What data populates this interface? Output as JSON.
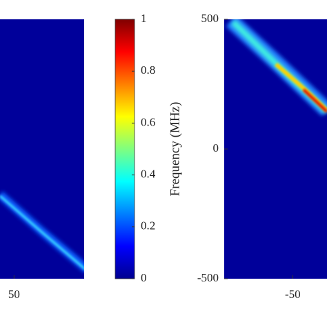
{
  "chart_data": [
    {
      "type": "heatmap",
      "xlim": [
        40,
        100
      ],
      "xticks": [
        50
      ]
    },
    {
      "type": "colorbar",
      "ylabel": "Frequency (MHz)",
      "ylim": [
        0,
        1
      ],
      "yticks": [
        0,
        0.2,
        0.4,
        0.6,
        0.8,
        1
      ]
    },
    {
      "type": "heatmap",
      "xlim": [
        -100,
        -25
      ],
      "xticks": [
        -50
      ],
      "ylim": [
        -500,
        500
      ],
      "yticks": [
        -500,
        0,
        500
      ]
    }
  ]
}
